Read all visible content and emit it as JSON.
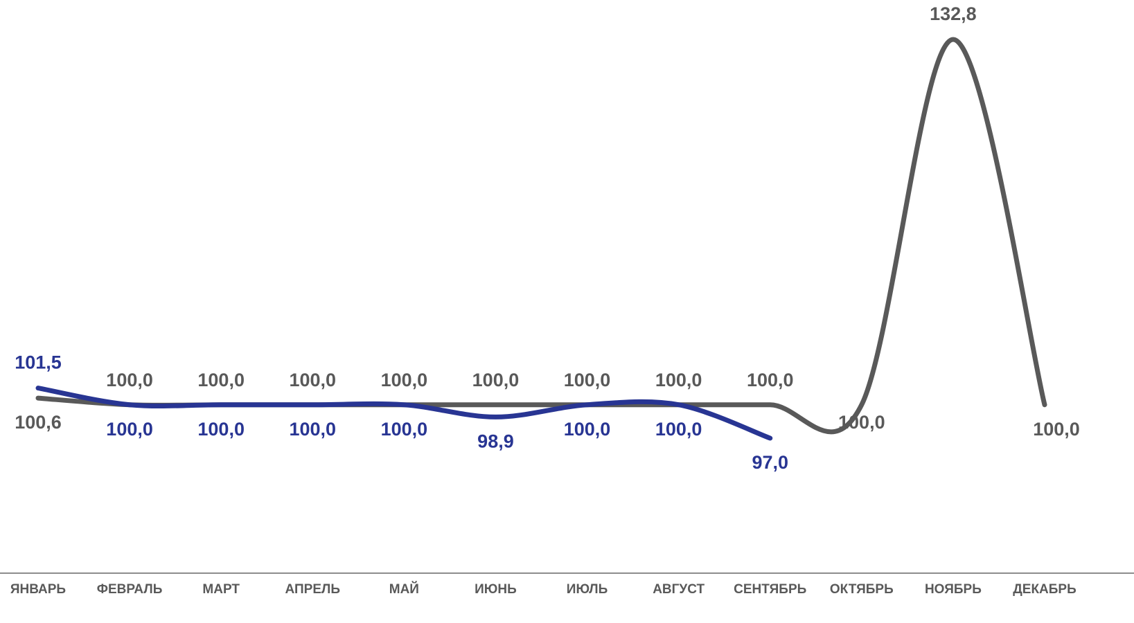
{
  "chart_data": {
    "type": "line",
    "categories": [
      "ЯНВАРЬ",
      "ФЕВРАЛЬ",
      "МАРТ",
      "АПРЕЛЬ",
      "МАЙ",
      "ИЮНЬ",
      "ИЮЛЬ",
      "АВГУСТ",
      "СЕНТЯБРЬ",
      "ОКТЯБРЬ",
      "НОЯБРЬ",
      "ДЕКАБРЬ"
    ],
    "series": [
      {
        "color": "#595959",
        "values": [
          100.6,
          100.0,
          100.0,
          100.0,
          100.0,
          100.0,
          100.0,
          100.0,
          100.0,
          100.0,
          132.8,
          100.0
        ],
        "value_labels": [
          "100,6",
          "100,0",
          "100,0",
          "100,0",
          "100,0",
          "100,0",
          "100,0",
          "100,0",
          "100,0",
          "100,0",
          "132,8",
          "100,0"
        ]
      },
      {
        "color": "#283593",
        "values": [
          101.5,
          100.0,
          100.0,
          100.0,
          100.0,
          98.9,
          100.0,
          100.0,
          97.0,
          null,
          null,
          null
        ],
        "value_labels": [
          "101,5",
          "100,0",
          "100,0",
          "100,0",
          "100,0",
          "98,9",
          "100,0",
          "100,0",
          "97,0",
          null,
          null,
          null
        ]
      }
    ]
  }
}
